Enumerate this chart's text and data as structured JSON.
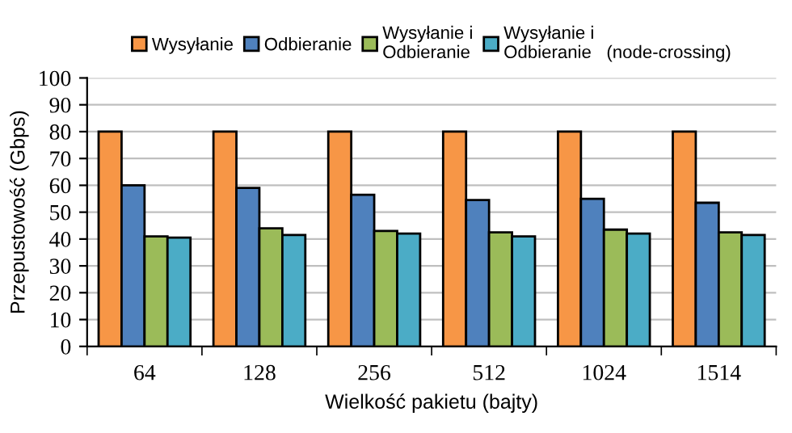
{
  "chart_data": {
    "type": "bar",
    "xlabel": "Wielkość pakietu (bajty)",
    "ylabel": "Przepustowość (Gbps)",
    "categories": [
      "64",
      "128",
      "256",
      "512",
      "1024",
      "1514"
    ],
    "series": [
      {
        "name": "Wysyłanie",
        "color": "#f79646",
        "values": [
          80,
          80,
          80,
          80,
          80,
          80
        ]
      },
      {
        "name": "Odbieranie",
        "color": "#4f81bd",
        "values": [
          60,
          59,
          56.5,
          54.5,
          55,
          53.5
        ]
      },
      {
        "name": "Wysyłanie i\nOdbieranie",
        "color": "#9bbb59",
        "values": [
          41,
          44,
          43,
          42.5,
          43.5,
          42.5
        ]
      },
      {
        "name": "Wysyłanie i\nOdbieranie   (node-crossing)",
        "color": "#4bacc6",
        "values": [
          40.5,
          41.5,
          42,
          41,
          42,
          41.5
        ]
      }
    ],
    "ylim": [
      0,
      100
    ],
    "yticks": [
      0,
      10,
      20,
      30,
      40,
      50,
      60,
      70,
      80,
      90,
      100
    ],
    "grid": "y",
    "legend": "top"
  }
}
